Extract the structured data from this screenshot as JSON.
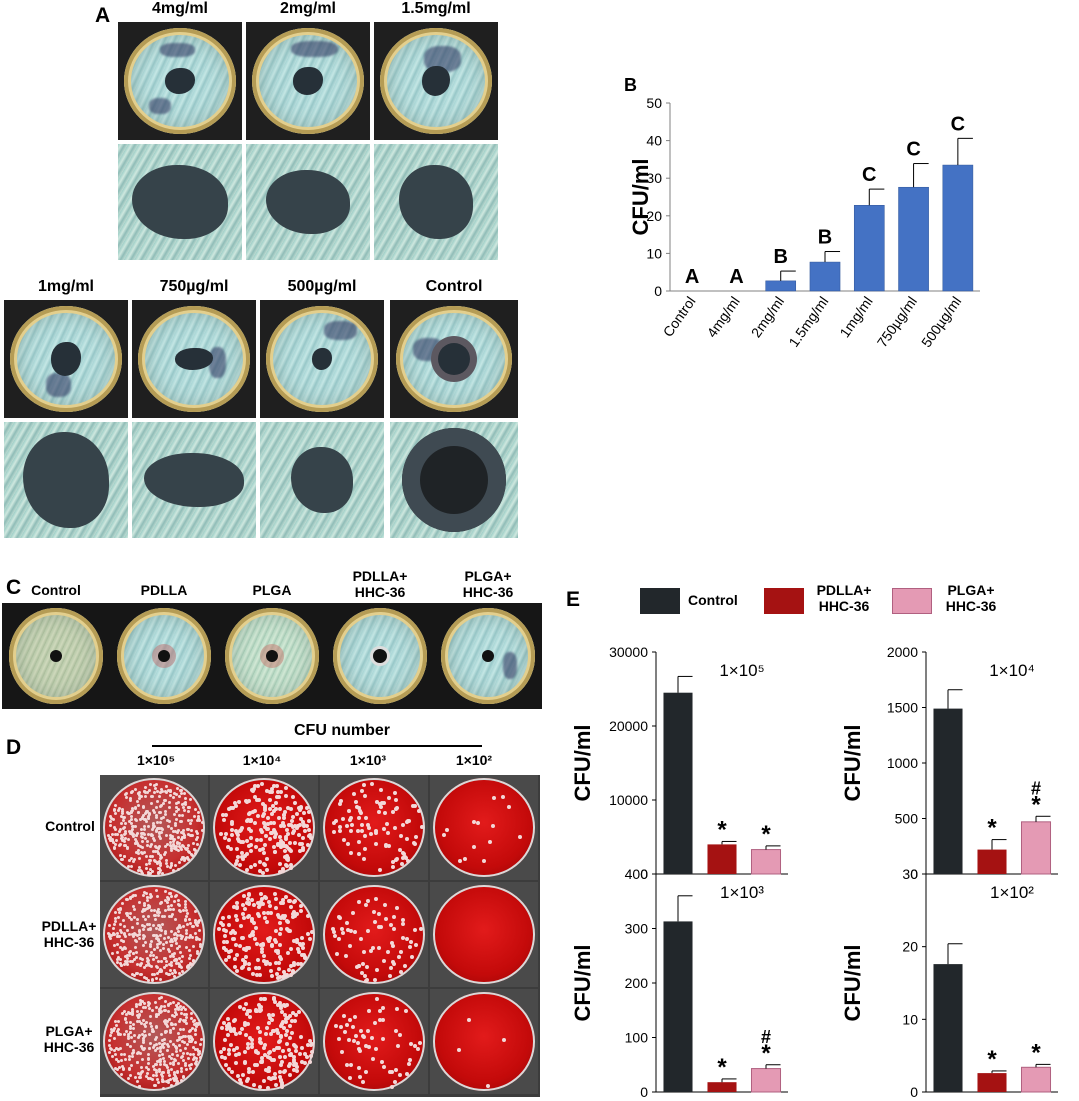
{
  "panel_a": {
    "label": "A",
    "top_concentrations": [
      "4mg/ml",
      "2mg/ml",
      "1.5mg/ml"
    ],
    "bottom_concentrations": [
      "1mg/ml",
      "750µg/ml",
      "500µg/ml",
      "Control"
    ]
  },
  "panel_c": {
    "label": "C",
    "plates": [
      "Control",
      "PDLLA",
      "PLGA",
      "PDLLA+\nHHC-36",
      "PLGA+\nHHC-36"
    ]
  },
  "panel_d": {
    "label": "D",
    "header": "CFU number",
    "columns": [
      "1×10⁵",
      "1×10⁴",
      "1×10³",
      "1×10²"
    ],
    "rows": [
      "Control",
      "PDLLA+\nHHC-36",
      "PLGA+\nHHC-36"
    ]
  },
  "panel_e": {
    "label": "E",
    "legend": [
      {
        "name": "Control",
        "color": "#22272b"
      },
      {
        "name": "PDLLA+\nHHC-36",
        "color": "#a51212"
      },
      {
        "name": "PLGA+\nHHC-36",
        "color": "#e49ab4"
      }
    ]
  },
  "chart_data": [
    {
      "type": "bar",
      "panel": "B",
      "categories": [
        "Control",
        "4mg/ml",
        "2mg/ml",
        "1.5mg/ml",
        "1mg/ml",
        "750µg/ml",
        "500µg/ml"
      ],
      "values": [
        0,
        0,
        2.7,
        7.7,
        22.8,
        27.6,
        33.5
      ],
      "errors": [
        0,
        0,
        2.6,
        2.8,
        4.3,
        6.3,
        7.1
      ],
      "annotations": [
        "A",
        "A",
        "B",
        "B",
        "C",
        "C",
        "C"
      ],
      "ylabel": "CFU/ml",
      "ylim": [
        0,
        50
      ],
      "yticks": [
        "0",
        "10",
        "20",
        "30",
        "40",
        "50"
      ],
      "color": "#4472c4"
    },
    {
      "type": "bar",
      "panel": "E",
      "title": "1×10⁵",
      "categories": [
        "Control",
        "PDLLA+HHC-36",
        "PLGA+HHC-36"
      ],
      "values": [
        24500,
        4000,
        3300
      ],
      "errors": [
        2200,
        400,
        500
      ],
      "annotations": [
        "",
        "*",
        "*"
      ],
      "ylabel": "CFU/ml",
      "ylim": [
        0,
        30000
      ],
      "yticks": [
        "0",
        "10000",
        "20000",
        "30000"
      ]
    },
    {
      "type": "bar",
      "panel": "E",
      "title": "1×10⁴",
      "categories": [
        "Control",
        "PDLLA+HHC-36",
        "PLGA+HHC-36"
      ],
      "values": [
        1490,
        220,
        470
      ],
      "errors": [
        170,
        90,
        50
      ],
      "annotations": [
        "",
        "*",
        "#\n*"
      ],
      "ylabel": "CFU/ml",
      "ylim": [
        0,
        2000
      ],
      "yticks": [
        "0",
        "500",
        "1000",
        "1500",
        "2000"
      ]
    },
    {
      "type": "bar",
      "panel": "E",
      "title": "1×10³",
      "categories": [
        "Control",
        "PDLLA+HHC-36",
        "PLGA+HHC-36"
      ],
      "values": [
        313,
        18,
        43
      ],
      "errors": [
        47,
        6,
        7
      ],
      "annotations": [
        "",
        "*",
        "#\n*"
      ],
      "ylabel": "CFU/ml",
      "ylim": [
        0,
        400
      ],
      "yticks": [
        "0",
        "100",
        "200",
        "300",
        "400"
      ]
    },
    {
      "type": "bar",
      "panel": "E",
      "title": "1×10²",
      "categories": [
        "Control",
        "PDLLA+HHC-36",
        "PLGA+HHC-36"
      ],
      "values": [
        17.6,
        2.6,
        3.4
      ],
      "errors": [
        2.8,
        0.3,
        0.4
      ],
      "annotations": [
        "",
        "*",
        "*"
      ],
      "ylabel": "CFU/ml",
      "ylim": [
        0,
        30
      ],
      "yticks": [
        "0",
        "10",
        "20",
        "30"
      ]
    }
  ]
}
